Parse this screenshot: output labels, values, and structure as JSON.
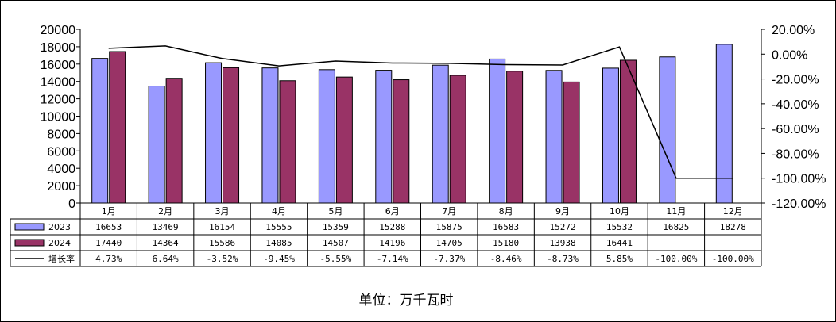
{
  "chart_data": {
    "type": "bar",
    "categories": [
      "1月",
      "2月",
      "3月",
      "4月",
      "5月",
      "6月",
      "7月",
      "8月",
      "9月",
      "10月",
      "11月",
      "12月"
    ],
    "series": [
      {
        "name": "2023",
        "kind": "bar",
        "color": "#9999ff",
        "values": [
          16653,
          13469,
          16154,
          15555,
          15359,
          15288,
          15875,
          16583,
          15272,
          15532,
          16825,
          18278
        ]
      },
      {
        "name": "2024",
        "kind": "bar",
        "color": "#993366",
        "values": [
          17440,
          14364,
          15586,
          14085,
          14507,
          14196,
          14705,
          15180,
          13938,
          16441,
          null,
          null
        ]
      },
      {
        "name": "增长率",
        "kind": "line",
        "axis": "right",
        "color": "#000000",
        "values": [
          4.73,
          6.64,
          -3.52,
          -9.45,
          -5.55,
          -7.14,
          -7.37,
          -8.46,
          -8.73,
          5.85,
          -100.0,
          -100.0
        ],
        "labels": [
          "4.73%",
          "6.64%",
          "-3.52%",
          "-9.45%",
          "-5.55%",
          "-7.14%",
          "-7.37%",
          "-8.46%",
          "-8.73%",
          "5.85%",
          "-100.00%",
          "-100.00%"
        ]
      }
    ],
    "ylim": [
      0,
      20000
    ],
    "yticks": [
      "0",
      "2000",
      "4000",
      "6000",
      "8000",
      "10000",
      "12000",
      "14000",
      "16000",
      "18000",
      "20000"
    ],
    "y2lim": [
      -120,
      20
    ],
    "y2ticks": [
      "-120.00%",
      "-100.00%",
      "-80.00%",
      "-60.00%",
      "-40.00%",
      "-20.00%",
      "0.00%",
      "20.00%"
    ],
    "data_table": true,
    "grid": false,
    "legend": "data-table-left",
    "footer": "单位：万千瓦时"
  }
}
